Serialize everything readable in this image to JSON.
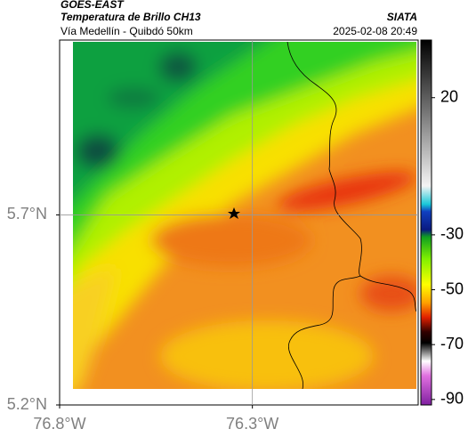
{
  "header": {
    "satellite": "GOES-EAST",
    "product": "Temperatura de Brillo CH13",
    "route": "Vía Medellín - Quibdó 50km",
    "org": "SIATA",
    "datetime": "2025-02-08 20:49"
  },
  "map": {
    "lon_lim": [
      -76.8,
      -75.87
    ],
    "lat_lim": [
      5.2,
      6.16
    ],
    "lon_ticks": [
      {
        "value": -76.8,
        "label": "76.8°W"
      },
      {
        "value": -76.3,
        "label": "76.3°W"
      }
    ],
    "lat_ticks": [
      {
        "value": 5.7,
        "label": "5.7°N"
      },
      {
        "value": 5.2,
        "label": "5.2°N"
      }
    ]
  },
  "colorbar": {
    "lim": [
      -92,
      41
    ],
    "ticks": [
      20,
      -30,
      -50,
      -70,
      -90
    ]
  }
}
